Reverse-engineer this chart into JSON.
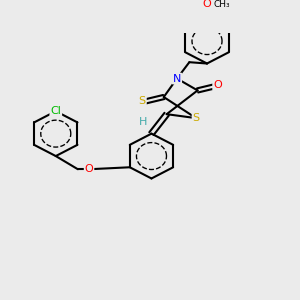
{
  "bg_color": "#ebebeb",
  "atom_colors": {
    "Cl": "#00bb00",
    "O": "#ff0000",
    "N": "#0000ff",
    "S": "#ccaa00",
    "H": "#44aaaa",
    "C": "#000000"
  },
  "bond_width": 1.5,
  "font_size": 8
}
